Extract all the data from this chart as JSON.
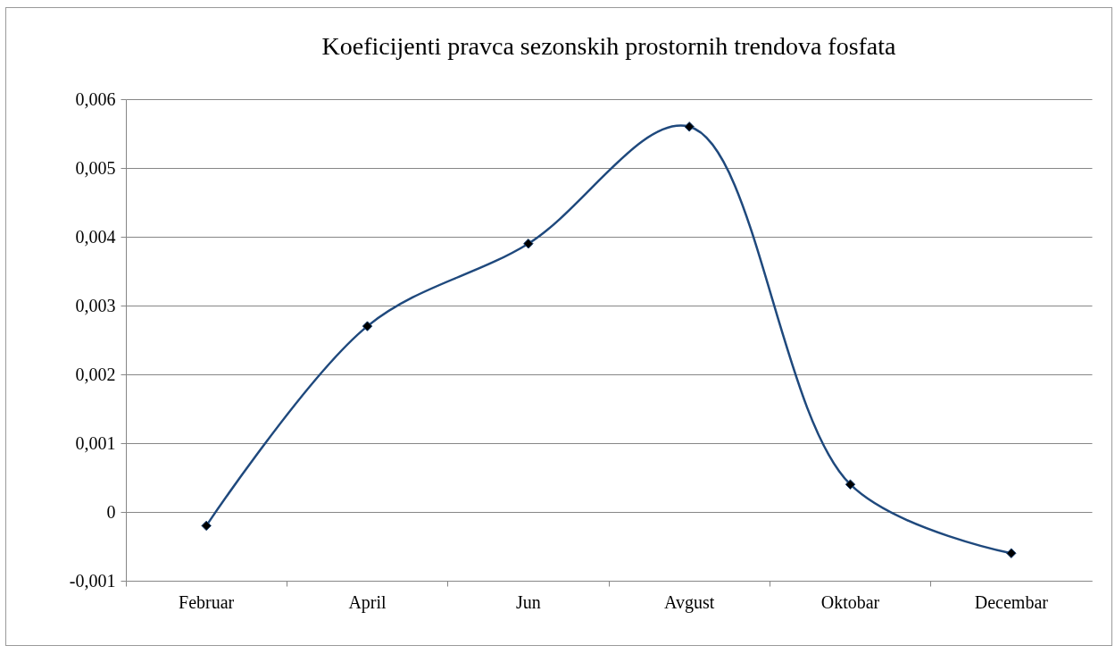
{
  "chart_data": {
    "type": "line",
    "title": "Koeficijenti pravca sezonskih prostornih trendova fosfata",
    "categories": [
      "Februar",
      "April",
      "Jun",
      "Avgust",
      "Oktobar",
      "Decembar"
    ],
    "series": [
      {
        "color": "#1f497d",
        "values": [
          -0.0002,
          0.0027,
          0.0039,
          0.0056,
          0.0004,
          -0.0006
        ]
      }
    ],
    "ylim": [
      -0.001,
      0.006
    ],
    "yticks": [
      {
        "value": -0.001,
        "label": "-0,001"
      },
      0,
      {
        "value": 0.001,
        "label": "0,001"
      },
      {
        "value": 0.002,
        "label": "0,002"
      },
      {
        "value": 0.003,
        "label": "0,003"
      },
      {
        "value": 0.004,
        "label": "0,004"
      },
      {
        "value": 0.005,
        "label": "0,005"
      },
      {
        "value": 0.006,
        "label": "0,006"
      }
    ],
    "grid": "y",
    "marker": "diamond",
    "line_style": "solid",
    "legend": false
  }
}
